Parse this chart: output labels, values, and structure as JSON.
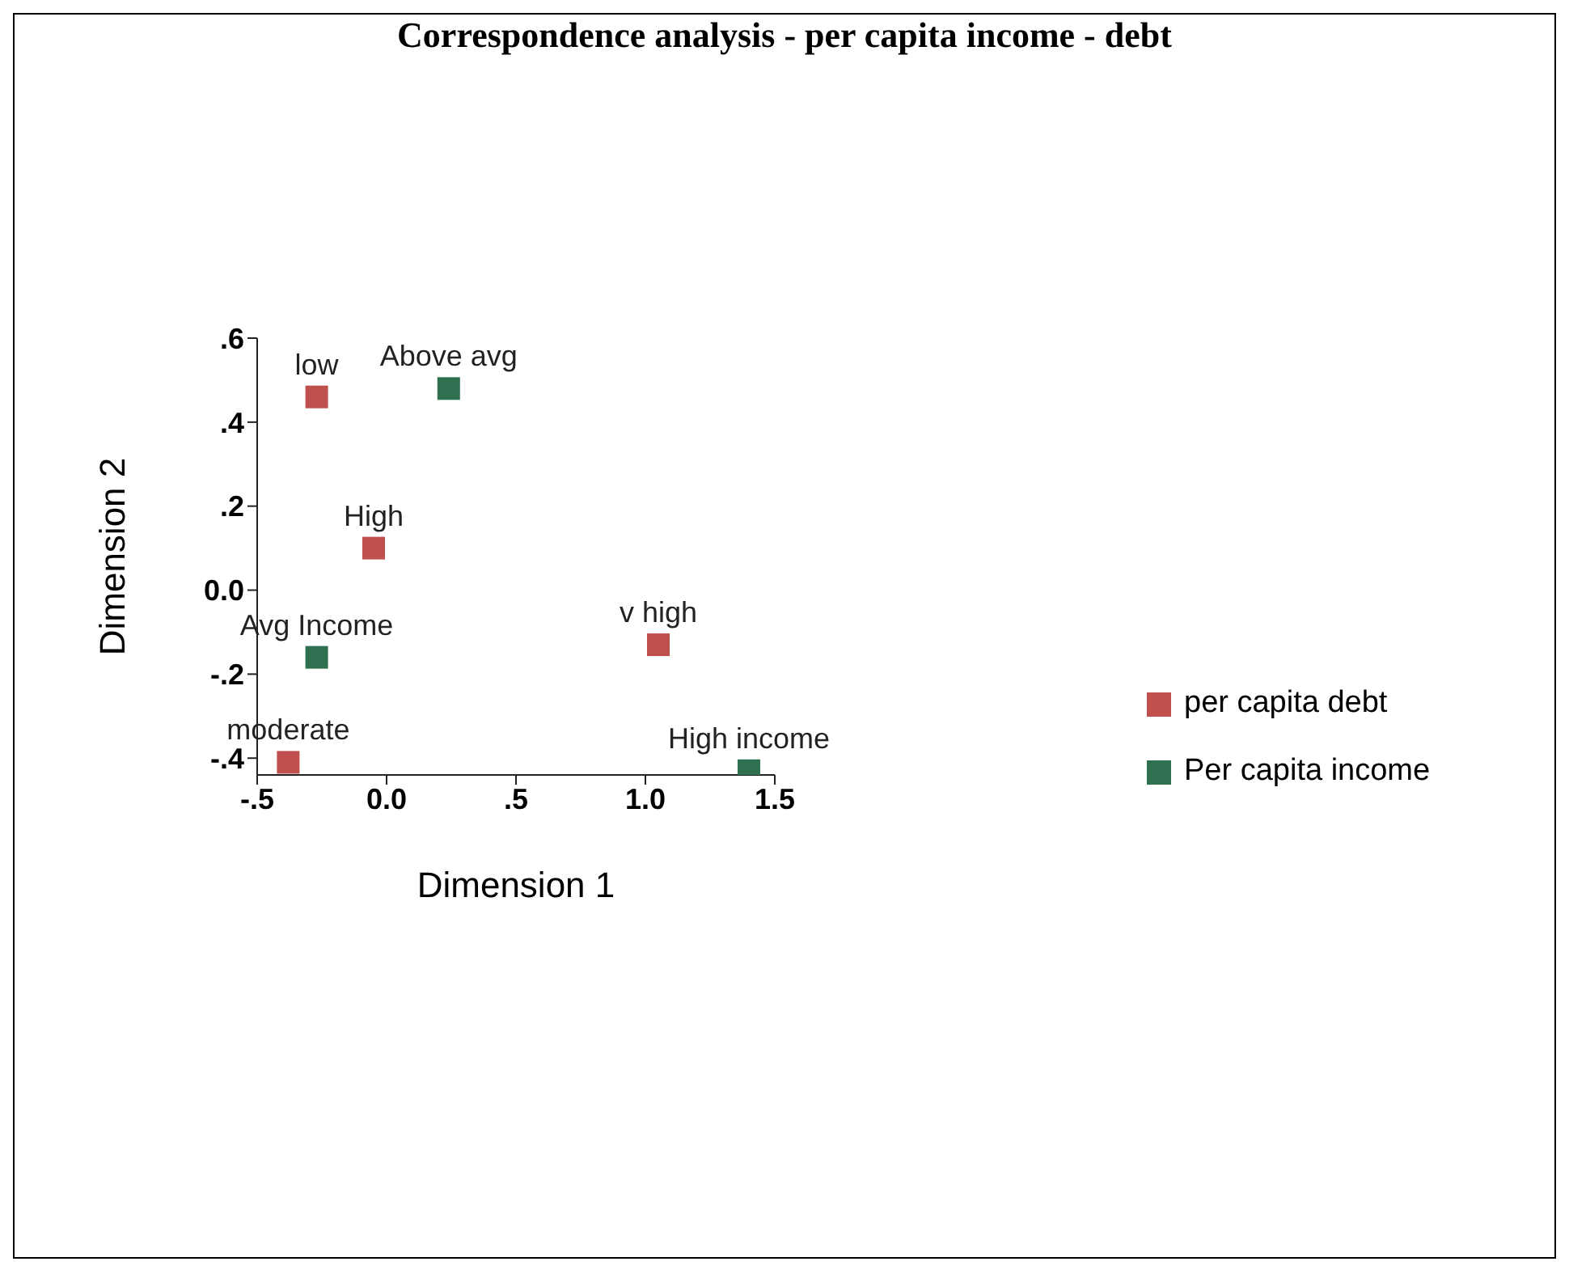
{
  "chart_data": {
    "type": "scatter",
    "title": "Correspondence analysis - per capita income - debt",
    "xlabel": "Dimension 1",
    "ylabel": "Dimension 2",
    "xlim": [
      -0.5,
      1.5
    ],
    "ylim": [
      -0.44,
      0.6
    ],
    "xticks": [
      {
        "value": -0.5,
        "label": "-.5"
      },
      {
        "value": 0,
        "label": "0.0"
      },
      {
        "value": 0.5,
        "label": ".5"
      },
      {
        "value": 1,
        "label": "1.0"
      },
      {
        "value": 1.5,
        "label": "1.5"
      }
    ],
    "yticks": [
      {
        "value": -0.4,
        "label": "-.4"
      },
      {
        "value": -0.2,
        "label": "-.2"
      },
      {
        "value": 0,
        "label": "0.0"
      },
      {
        "value": 0.2,
        "label": ".2"
      },
      {
        "value": 0.4,
        "label": ".4"
      },
      {
        "value": 0.6,
        "label": ".6"
      }
    ],
    "series": [
      {
        "name": "per capita debt",
        "color": "#c0504d",
        "x": [
          -0.27,
          -0.05,
          -0.38,
          1.05
        ],
        "values": [
          0.46,
          0.1,
          -0.41,
          -0.13
        ]
      },
      {
        "name": "Per capita income",
        "color": "#2e7050",
        "x": [
          0.24,
          -0.27,
          1.4
        ],
        "values": [
          0.48,
          -0.16,
          -0.43
        ]
      }
    ],
    "annotations": [
      {
        "text": "low",
        "x": -0.27,
        "y": 0.46
      },
      {
        "text": "High",
        "x": -0.05,
        "y": 0.1
      },
      {
        "text": "moderate",
        "x": -0.38,
        "y": -0.41
      },
      {
        "text": "v high",
        "x": 1.05,
        "y": -0.13
      },
      {
        "text": "Above avg",
        "x": 0.24,
        "y": 0.48
      },
      {
        "text": "Avg Income",
        "x": -0.27,
        "y": -0.16
      },
      {
        "text": "High income",
        "x": 1.4,
        "y": -0.43
      }
    ],
    "grid": false,
    "legend": "right",
    "marker": "square"
  }
}
